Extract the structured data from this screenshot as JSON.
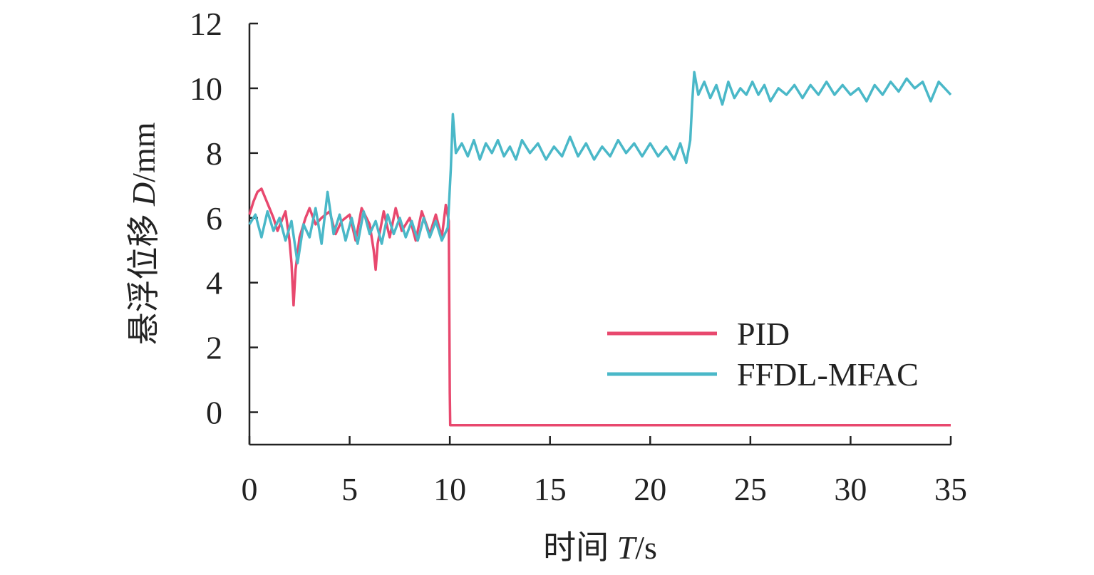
{
  "chart_data": {
    "type": "line",
    "title": "",
    "xlabel": {
      "prefix": "时间 ",
      "symbol": "T",
      "unit": "/s"
    },
    "ylabel": {
      "prefix": "悬浮位移 ",
      "symbol": "D",
      "unit": "/mm"
    },
    "xlim": [
      0,
      35
    ],
    "ylim": [
      -1,
      12
    ],
    "xticks": [
      0,
      5,
      10,
      15,
      20,
      25,
      30,
      35
    ],
    "yticks": [
      0,
      2,
      4,
      6,
      8,
      10,
      12
    ],
    "xtick_labels": [
      "0",
      "5",
      "10",
      "15",
      "20",
      "25",
      "30",
      "35"
    ],
    "ytick_labels": [
      "0",
      "2",
      "4",
      "6",
      "8",
      "10",
      "12"
    ],
    "grid": false,
    "legend_position": "bottom-right",
    "series": [
      {
        "name": "PID",
        "color": "#e8486e",
        "points": [
          [
            0,
            6.1
          ],
          [
            0.2,
            6.5
          ],
          [
            0.4,
            6.8
          ],
          [
            0.6,
            6.9
          ],
          [
            0.8,
            6.6
          ],
          [
            1.0,
            6.3
          ],
          [
            1.2,
            6.0
          ],
          [
            1.4,
            5.6
          ],
          [
            1.6,
            5.9
          ],
          [
            1.8,
            6.2
          ],
          [
            2.0,
            5.3
          ],
          [
            2.1,
            4.6
          ],
          [
            2.2,
            3.3
          ],
          [
            2.3,
            4.4
          ],
          [
            2.5,
            5.4
          ],
          [
            2.8,
            6.0
          ],
          [
            3.0,
            6.3
          ],
          [
            3.3,
            5.8
          ],
          [
            3.6,
            6.0
          ],
          [
            4.0,
            6.2
          ],
          [
            4.3,
            5.5
          ],
          [
            4.6,
            5.9
          ],
          [
            5.0,
            6.1
          ],
          [
            5.3,
            5.3
          ],
          [
            5.6,
            6.3
          ],
          [
            6.0,
            5.8
          ],
          [
            6.2,
            5.0
          ],
          [
            6.3,
            4.4
          ],
          [
            6.4,
            5.2
          ],
          [
            6.7,
            6.2
          ],
          [
            7.0,
            5.4
          ],
          [
            7.3,
            6.3
          ],
          [
            7.6,
            5.6
          ],
          [
            8.0,
            6.0
          ],
          [
            8.3,
            5.3
          ],
          [
            8.6,
            6.2
          ],
          [
            9.0,
            5.5
          ],
          [
            9.3,
            6.1
          ],
          [
            9.6,
            5.4
          ],
          [
            9.8,
            6.4
          ],
          [
            9.95,
            5.9
          ],
          [
            10.0,
            0.6
          ],
          [
            10.02,
            -0.4
          ],
          [
            35,
            -0.4
          ]
        ]
      },
      {
        "name": "FFDL-MFAC",
        "color": "#4ab8c8",
        "points": [
          [
            0,
            5.8
          ],
          [
            0.3,
            6.1
          ],
          [
            0.6,
            5.4
          ],
          [
            0.9,
            6.2
          ],
          [
            1.2,
            5.6
          ],
          [
            1.5,
            6.0
          ],
          [
            1.8,
            5.3
          ],
          [
            2.1,
            5.9
          ],
          [
            2.4,
            4.6
          ],
          [
            2.7,
            5.8
          ],
          [
            3.0,
            5.4
          ],
          [
            3.3,
            6.3
          ],
          [
            3.6,
            5.2
          ],
          [
            3.9,
            6.8
          ],
          [
            4.2,
            5.5
          ],
          [
            4.5,
            6.1
          ],
          [
            4.8,
            5.3
          ],
          [
            5.1,
            6.0
          ],
          [
            5.4,
            5.2
          ],
          [
            5.7,
            6.2
          ],
          [
            6.0,
            5.5
          ],
          [
            6.3,
            5.9
          ],
          [
            6.6,
            5.2
          ],
          [
            6.9,
            6.1
          ],
          [
            7.2,
            5.5
          ],
          [
            7.5,
            6.0
          ],
          [
            7.8,
            5.4
          ],
          [
            8.1,
            5.9
          ],
          [
            8.4,
            5.3
          ],
          [
            8.7,
            6.0
          ],
          [
            9.0,
            5.4
          ],
          [
            9.3,
            5.9
          ],
          [
            9.6,
            5.3
          ],
          [
            9.9,
            5.7
          ],
          [
            10.05,
            7.5
          ],
          [
            10.15,
            9.2
          ],
          [
            10.3,
            8.0
          ],
          [
            10.6,
            8.3
          ],
          [
            10.9,
            7.9
          ],
          [
            11.2,
            8.4
          ],
          [
            11.5,
            7.8
          ],
          [
            11.8,
            8.3
          ],
          [
            12.1,
            8.0
          ],
          [
            12.4,
            8.4
          ],
          [
            12.7,
            7.9
          ],
          [
            13.0,
            8.2
          ],
          [
            13.3,
            7.8
          ],
          [
            13.6,
            8.4
          ],
          [
            14.0,
            8.0
          ],
          [
            14.4,
            8.3
          ],
          [
            14.8,
            7.8
          ],
          [
            15.2,
            8.2
          ],
          [
            15.6,
            7.9
          ],
          [
            16.0,
            8.5
          ],
          [
            16.4,
            7.9
          ],
          [
            16.8,
            8.3
          ],
          [
            17.2,
            7.8
          ],
          [
            17.6,
            8.2
          ],
          [
            18.0,
            7.9
          ],
          [
            18.4,
            8.4
          ],
          [
            18.8,
            8.0
          ],
          [
            19.2,
            8.3
          ],
          [
            19.6,
            7.9
          ],
          [
            20.0,
            8.3
          ],
          [
            20.4,
            7.9
          ],
          [
            20.8,
            8.2
          ],
          [
            21.2,
            7.8
          ],
          [
            21.5,
            8.3
          ],
          [
            21.8,
            7.7
          ],
          [
            22.0,
            8.4
          ],
          [
            22.1,
            9.6
          ],
          [
            22.2,
            10.5
          ],
          [
            22.4,
            9.8
          ],
          [
            22.7,
            10.2
          ],
          [
            23.0,
            9.7
          ],
          [
            23.3,
            10.1
          ],
          [
            23.6,
            9.5
          ],
          [
            23.9,
            10.2
          ],
          [
            24.2,
            9.7
          ],
          [
            24.5,
            10.0
          ],
          [
            24.8,
            9.8
          ],
          [
            25.1,
            10.2
          ],
          [
            25.4,
            9.8
          ],
          [
            25.7,
            10.1
          ],
          [
            26.0,
            9.6
          ],
          [
            26.4,
            10.0
          ],
          [
            26.8,
            9.8
          ],
          [
            27.2,
            10.1
          ],
          [
            27.6,
            9.7
          ],
          [
            28.0,
            10.1
          ],
          [
            28.4,
            9.8
          ],
          [
            28.8,
            10.2
          ],
          [
            29.2,
            9.8
          ],
          [
            29.6,
            10.1
          ],
          [
            30.0,
            9.8
          ],
          [
            30.4,
            10.0
          ],
          [
            30.8,
            9.6
          ],
          [
            31.2,
            10.1
          ],
          [
            31.6,
            9.8
          ],
          [
            32.0,
            10.2
          ],
          [
            32.4,
            9.9
          ],
          [
            32.8,
            10.3
          ],
          [
            33.2,
            10.0
          ],
          [
            33.6,
            10.2
          ],
          [
            34.0,
            9.6
          ],
          [
            34.4,
            10.2
          ],
          [
            34.7,
            10.0
          ],
          [
            35.0,
            9.8
          ]
        ]
      }
    ]
  }
}
